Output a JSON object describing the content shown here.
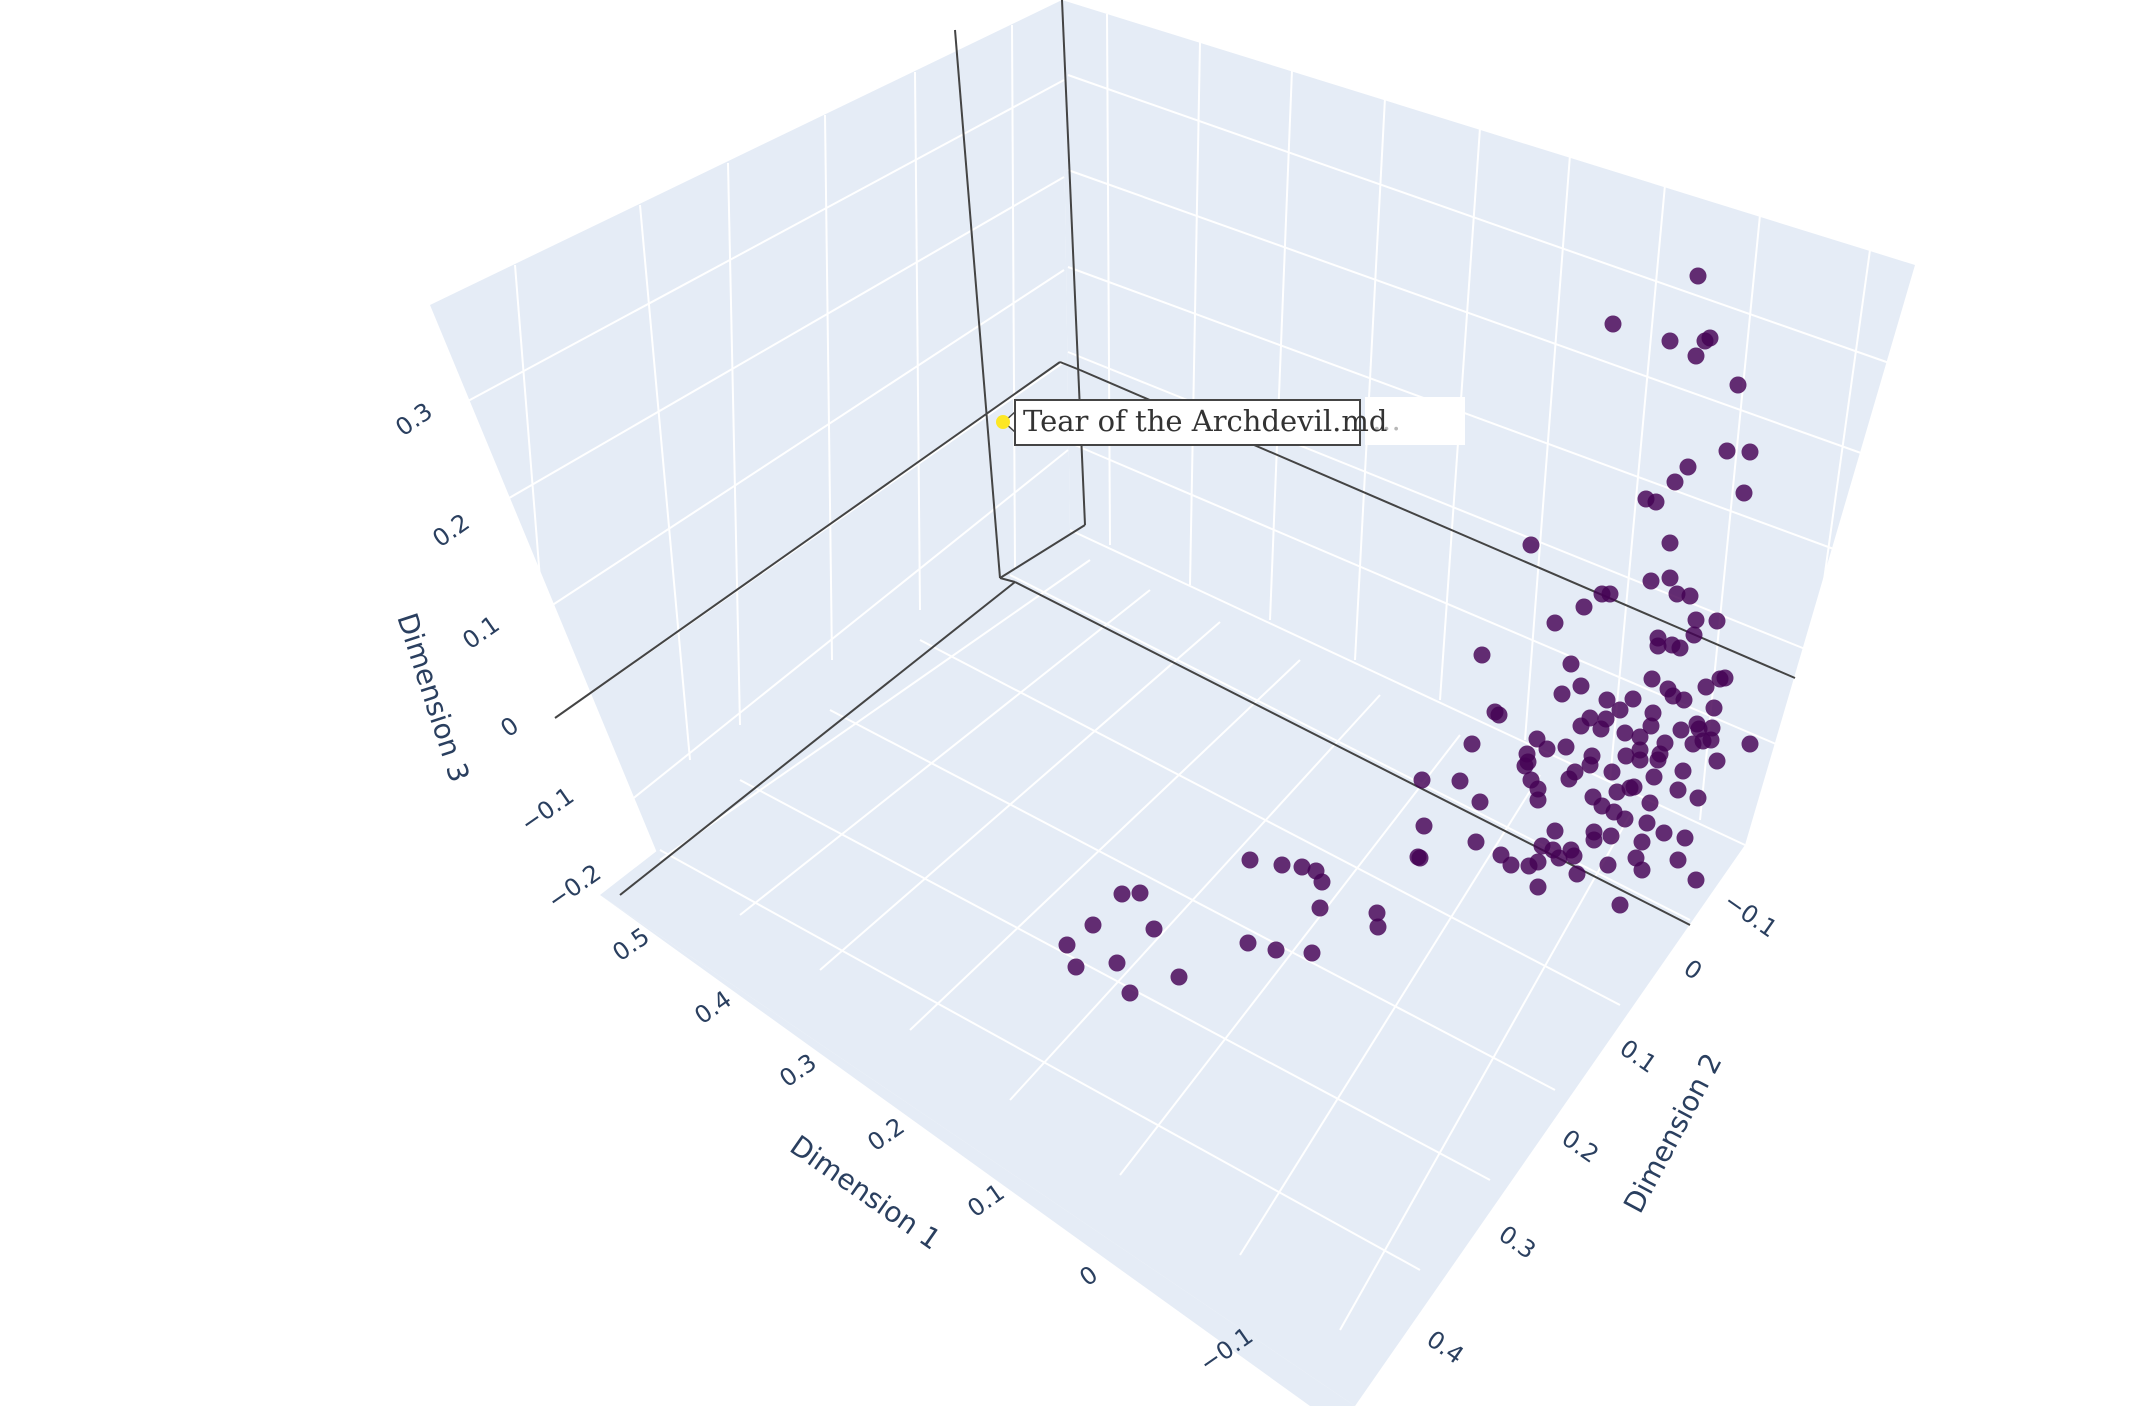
{
  "chart_data": {
    "type": "scatter3d",
    "axes": {
      "x": {
        "title": "Dimension 1",
        "ticks": [
          "0.5",
          "0.4",
          "0.3",
          "0.2",
          "0.1",
          "0",
          "−0.1"
        ]
      },
      "y": {
        "title": "Dimension 2",
        "ticks": [
          "−0.1",
          "0",
          "0.1",
          "0.2",
          "0.3",
          "0.4"
        ]
      },
      "z": {
        "title": "Dimension 3",
        "ticks": [
          "−0.2",
          "−0.1",
          "0",
          "0.1",
          "0.2",
          "0.3"
        ]
      }
    },
    "grid": true,
    "marker_color": "#440154",
    "highlight_color": "#fde725",
    "hover": {
      "label": "Tear of the Archdevil.md",
      "ghost_label": "…"
    },
    "points_screen_note": "points are drawn from their approximate on-screen projection"
  }
}
